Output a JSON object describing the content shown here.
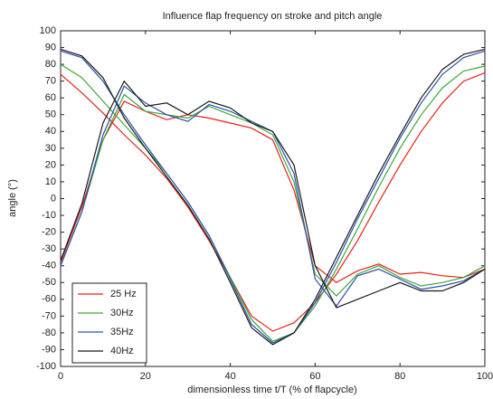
{
  "chart_data": {
    "type": "line",
    "title": "Influence flap frequency on stroke and pitch angle",
    "xlabel": "dimensionless time t/T (% of flapcycle)",
    "ylabel": "angle (°)",
    "x": [
      0,
      5,
      10,
      15,
      20,
      25,
      30,
      35,
      40,
      45,
      50,
      55,
      60,
      65,
      70,
      75,
      80,
      85,
      90,
      95,
      100
    ],
    "series": [
      {
        "name": "25 Hz",
        "color": "#e8201c",
        "curves": [
          [
            74,
            63,
            51,
            38,
            26,
            12,
            -5,
            -25,
            -47,
            -70,
            -79,
            -74,
            -62,
            -45,
            -25,
            -2,
            20,
            40,
            57,
            70,
            75
          ],
          [
            -38,
            -5,
            35,
            58,
            52,
            47,
            50,
            48,
            45,
            42,
            35,
            5,
            -40,
            -50,
            -43,
            -39,
            -45,
            -44,
            -46,
            -47,
            -42
          ]
        ]
      },
      {
        "name": "30Hz",
        "color": "#3aaa35",
        "curves": [
          [
            80,
            72,
            58,
            44,
            30,
            15,
            -2,
            -22,
            -47,
            -72,
            -85,
            -80,
            -64,
            -42,
            -18,
            7,
            30,
            50,
            66,
            76,
            79
          ],
          [
            -40,
            -8,
            35,
            62,
            52,
            50,
            48,
            55,
            50,
            45,
            38,
            10,
            -45,
            -58,
            -45,
            -40,
            -47,
            -52,
            -50,
            -47,
            -40
          ]
        ]
      },
      {
        "name": "35Hz",
        "color": "#2a4fb0",
        "curves": [
          [
            88,
            84,
            70,
            50,
            32,
            15,
            -2,
            -22,
            -48,
            -75,
            -86,
            -80,
            -62,
            -38,
            -12,
            12,
            36,
            57,
            74,
            84,
            88
          ],
          [
            -40,
            -8,
            38,
            67,
            57,
            50,
            46,
            56,
            52,
            46,
            40,
            15,
            -48,
            -64,
            -46,
            -42,
            -48,
            -54,
            -52,
            -49,
            -42
          ]
        ]
      },
      {
        "name": "40Hz",
        "color": "#1a1a1a",
        "curves": [
          [
            89,
            85,
            72,
            48,
            30,
            13,
            -4,
            -24,
            -50,
            -77,
            -87,
            -80,
            -60,
            -35,
            -10,
            15,
            38,
            60,
            77,
            86,
            89
          ],
          [
            -37,
            -3,
            45,
            70,
            55,
            57,
            50,
            58,
            54,
            45,
            40,
            20,
            -40,
            -65,
            -60,
            -55,
            -50,
            -55,
            -55,
            -50,
            -42
          ]
        ]
      }
    ],
    "xlim": [
      0,
      100
    ],
    "xticks": [
      0,
      20,
      40,
      60,
      80,
      100
    ],
    "ylim": [
      -100,
      100
    ],
    "yticks": [
      -100,
      -90,
      -80,
      -70,
      -60,
      -50,
      -40,
      -30,
      -20,
      -10,
      0,
      10,
      20,
      30,
      40,
      50,
      60,
      70,
      80,
      90,
      100
    ],
    "grid": false,
    "legend": "lower left"
  }
}
